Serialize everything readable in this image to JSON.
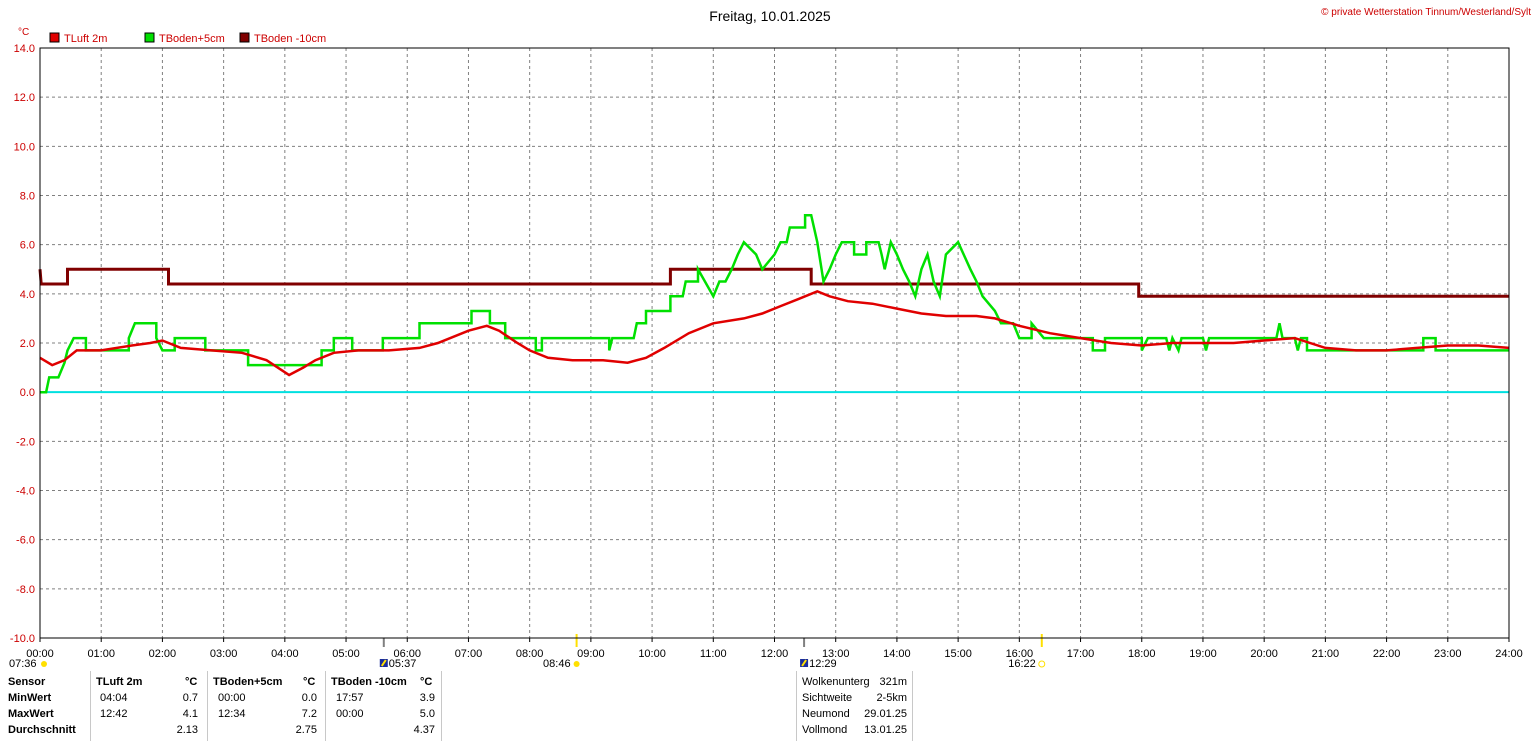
{
  "chart_data": {
    "type": "line",
    "title": "Freitag, 10.01.2025",
    "copyright": "© private Wetterstation Tinnum/Westerland/Sylt",
    "ylabel": "°C",
    "ylim": [
      -10,
      14
    ],
    "y_ticks": [
      "14.0",
      "12.0",
      "10.0",
      "8.0",
      "6.0",
      "4.0",
      "2.0",
      "0.0",
      "-2.0",
      "-4.0",
      "-6.0",
      "-8.0",
      "-10.0"
    ],
    "x_ticks": [
      "00:00",
      "01:00",
      "02:00",
      "03:00",
      "04:00",
      "05:00",
      "06:00",
      "07:00",
      "08:00",
      "09:00",
      "10:00",
      "11:00",
      "12:00",
      "13:00",
      "14:00",
      "15:00",
      "16:00",
      "17:00",
      "18:00",
      "19:00",
      "20:00",
      "21:00",
      "22:00",
      "23:00",
      "24:00"
    ],
    "xlim": [
      0,
      24
    ],
    "grid": true,
    "legend_position": "top-left",
    "zero_line_color": "#00e0e0",
    "series": [
      {
        "name": "TLuft 2m",
        "color": "#e00000",
        "width": 2.5,
        "points": [
          [
            0,
            1.4
          ],
          [
            0.2,
            1.1
          ],
          [
            0.4,
            1.3
          ],
          [
            0.6,
            1.7
          ],
          [
            1.0,
            1.7
          ],
          [
            1.5,
            1.9
          ],
          [
            1.8,
            2.0
          ],
          [
            2.0,
            2.1
          ],
          [
            2.3,
            1.8
          ],
          [
            2.8,
            1.7
          ],
          [
            3.3,
            1.6
          ],
          [
            3.7,
            1.3
          ],
          [
            4.07,
            0.7
          ],
          [
            4.3,
            1.0
          ],
          [
            4.5,
            1.3
          ],
          [
            4.8,
            1.6
          ],
          [
            5.2,
            1.7
          ],
          [
            5.7,
            1.7
          ],
          [
            6.2,
            1.8
          ],
          [
            6.5,
            2.0
          ],
          [
            7.0,
            2.5
          ],
          [
            7.3,
            2.7
          ],
          [
            7.5,
            2.5
          ],
          [
            7.8,
            2.0
          ],
          [
            8.0,
            1.7
          ],
          [
            8.3,
            1.4
          ],
          [
            8.7,
            1.3
          ],
          [
            9.2,
            1.3
          ],
          [
            9.6,
            1.2
          ],
          [
            9.9,
            1.4
          ],
          [
            10.2,
            1.8
          ],
          [
            10.6,
            2.4
          ],
          [
            11.0,
            2.8
          ],
          [
            11.5,
            3.0
          ],
          [
            11.8,
            3.2
          ],
          [
            12.1,
            3.5
          ],
          [
            12.4,
            3.8
          ],
          [
            12.7,
            4.1
          ],
          [
            12.9,
            3.9
          ],
          [
            13.2,
            3.7
          ],
          [
            13.6,
            3.6
          ],
          [
            14.0,
            3.4
          ],
          [
            14.4,
            3.2
          ],
          [
            14.8,
            3.1
          ],
          [
            15.3,
            3.1
          ],
          [
            15.6,
            3.0
          ],
          [
            16.0,
            2.7
          ],
          [
            16.5,
            2.4
          ],
          [
            17.0,
            2.2
          ],
          [
            17.5,
            2.0
          ],
          [
            18.0,
            1.9
          ],
          [
            18.5,
            2.0
          ],
          [
            19.0,
            2.0
          ],
          [
            19.5,
            2.0
          ],
          [
            20.0,
            2.1
          ],
          [
            20.5,
            2.2
          ],
          [
            21.0,
            1.8
          ],
          [
            21.5,
            1.7
          ],
          [
            22.0,
            1.7
          ],
          [
            22.5,
            1.8
          ],
          [
            23.0,
            1.9
          ],
          [
            23.5,
            1.9
          ],
          [
            24.0,
            1.8
          ]
        ]
      },
      {
        "name": "TBoden+5cm",
        "color": "#00e000",
        "width": 2.5,
        "points": [
          [
            0,
            0.0
          ],
          [
            0.1,
            0.0
          ],
          [
            0.15,
            0.6
          ],
          [
            0.3,
            0.6
          ],
          [
            0.4,
            1.2
          ],
          [
            0.45,
            1.7
          ],
          [
            0.55,
            2.2
          ],
          [
            0.75,
            2.2
          ],
          [
            0.75,
            1.7
          ],
          [
            1.45,
            1.7
          ],
          [
            1.45,
            2.2
          ],
          [
            1.55,
            2.8
          ],
          [
            1.9,
            2.8
          ],
          [
            1.9,
            2.2
          ],
          [
            2.0,
            1.7
          ],
          [
            2.2,
            1.7
          ],
          [
            2.2,
            2.2
          ],
          [
            2.7,
            2.2
          ],
          [
            2.7,
            1.7
          ],
          [
            3.4,
            1.7
          ],
          [
            3.4,
            1.1
          ],
          [
            4.6,
            1.1
          ],
          [
            4.6,
            1.7
          ],
          [
            4.8,
            1.7
          ],
          [
            4.8,
            2.2
          ],
          [
            5.1,
            2.2
          ],
          [
            5.1,
            1.7
          ],
          [
            5.6,
            1.7
          ],
          [
            5.6,
            2.2
          ],
          [
            6.2,
            2.2
          ],
          [
            6.2,
            2.8
          ],
          [
            7.05,
            2.8
          ],
          [
            7.05,
            3.3
          ],
          [
            7.35,
            3.3
          ],
          [
            7.35,
            2.8
          ],
          [
            7.6,
            2.8
          ],
          [
            7.6,
            2.2
          ],
          [
            8.1,
            2.2
          ],
          [
            8.1,
            1.7
          ],
          [
            8.2,
            1.7
          ],
          [
            8.2,
            2.2
          ],
          [
            9.3,
            2.2
          ],
          [
            9.3,
            1.7
          ],
          [
            9.35,
            2.2
          ],
          [
            9.7,
            2.2
          ],
          [
            9.75,
            2.8
          ],
          [
            9.9,
            2.8
          ],
          [
            9.9,
            3.3
          ],
          [
            10.3,
            3.3
          ],
          [
            10.3,
            3.9
          ],
          [
            10.5,
            3.9
          ],
          [
            10.55,
            4.5
          ],
          [
            10.75,
            4.5
          ],
          [
            10.75,
            5.0
          ],
          [
            11.0,
            3.9
          ],
          [
            11.1,
            4.5
          ],
          [
            11.2,
            4.5
          ],
          [
            11.3,
            5.0
          ],
          [
            11.4,
            5.6
          ],
          [
            11.5,
            6.1
          ],
          [
            11.7,
            5.6
          ],
          [
            11.8,
            5.0
          ],
          [
            12.0,
            5.6
          ],
          [
            12.1,
            6.1
          ],
          [
            12.2,
            6.1
          ],
          [
            12.25,
            6.7
          ],
          [
            12.5,
            6.7
          ],
          [
            12.5,
            7.2
          ],
          [
            12.6,
            7.2
          ],
          [
            12.7,
            6.1
          ],
          [
            12.8,
            4.5
          ],
          [
            12.9,
            5.0
          ],
          [
            13.0,
            5.6
          ],
          [
            13.1,
            6.1
          ],
          [
            13.3,
            6.1
          ],
          [
            13.3,
            5.6
          ],
          [
            13.5,
            5.6
          ],
          [
            13.5,
            6.1
          ],
          [
            13.7,
            6.1
          ],
          [
            13.75,
            5.6
          ],
          [
            13.8,
            5.0
          ],
          [
            13.9,
            6.1
          ],
          [
            14.0,
            5.6
          ],
          [
            14.1,
            5.0
          ],
          [
            14.2,
            4.5
          ],
          [
            14.3,
            3.9
          ],
          [
            14.4,
            5.0
          ],
          [
            14.5,
            5.6
          ],
          [
            14.6,
            4.5
          ],
          [
            14.7,
            3.9
          ],
          [
            14.8,
            5.6
          ],
          [
            15.0,
            6.1
          ],
          [
            15.2,
            5.0
          ],
          [
            15.3,
            4.5
          ],
          [
            15.4,
            3.9
          ],
          [
            15.6,
            3.3
          ],
          [
            15.7,
            2.8
          ],
          [
            15.9,
            2.8
          ],
          [
            16.0,
            2.2
          ],
          [
            16.2,
            2.2
          ],
          [
            16.2,
            2.8
          ],
          [
            16.4,
            2.2
          ],
          [
            17.2,
            2.2
          ],
          [
            17.2,
            1.7
          ],
          [
            17.4,
            1.7
          ],
          [
            17.4,
            2.2
          ],
          [
            18.0,
            2.2
          ],
          [
            18.0,
            1.7
          ],
          [
            18.1,
            2.2
          ],
          [
            18.4,
            2.2
          ],
          [
            18.45,
            1.7
          ],
          [
            18.5,
            2.2
          ],
          [
            18.6,
            1.7
          ],
          [
            18.65,
            2.2
          ],
          [
            19.0,
            2.2
          ],
          [
            19.05,
            1.7
          ],
          [
            19.1,
            2.2
          ],
          [
            20.2,
            2.2
          ],
          [
            20.25,
            2.8
          ],
          [
            20.3,
            2.2
          ],
          [
            20.5,
            2.2
          ],
          [
            20.55,
            1.7
          ],
          [
            20.6,
            2.2
          ],
          [
            20.7,
            2.2
          ],
          [
            20.7,
            1.7
          ],
          [
            22.6,
            1.7
          ],
          [
            22.6,
            2.2
          ],
          [
            22.8,
            2.2
          ],
          [
            22.8,
            1.7
          ],
          [
            24.0,
            1.7
          ]
        ]
      },
      {
        "name": "TBoden -10cm",
        "color": "#800000",
        "width": 3,
        "points": [
          [
            0,
            5.0
          ],
          [
            0.02,
            4.4
          ],
          [
            0.45,
            4.4
          ],
          [
            0.45,
            5.0
          ],
          [
            2.1,
            5.0
          ],
          [
            2.1,
            4.4
          ],
          [
            10.3,
            4.4
          ],
          [
            10.3,
            5.0
          ],
          [
            12.6,
            5.0
          ],
          [
            12.6,
            4.4
          ],
          [
            17.95,
            4.4
          ],
          [
            17.95,
            3.9
          ],
          [
            24.0,
            3.9
          ]
        ]
      }
    ],
    "sun_moon": {
      "sunrise": "08:46",
      "sunset": "16:22",
      "moonrise": "12:29",
      "moonset": "05:37",
      "start_label": "07:36"
    }
  },
  "table": {
    "header_sensor": "Sensor",
    "rows_labels": [
      "MinWert",
      "MaxWert",
      "Durchschnitt"
    ],
    "unit": "°C",
    "columns": [
      {
        "name": "TLuft 2m",
        "times": [
          "04:04",
          "12:42",
          ""
        ],
        "values": [
          "0.7",
          "4.1",
          "2.13"
        ]
      },
      {
        "name": "TBoden+5cm",
        "times": [
          "00:00",
          "12:34",
          ""
        ],
        "values": [
          "0.0",
          "7.2",
          "2.75"
        ]
      },
      {
        "name": "TBoden -10cm",
        "times": [
          "17:57",
          "00:00",
          ""
        ],
        "values": [
          "3.9",
          "5.0",
          "4.37"
        ]
      }
    ],
    "info": [
      {
        "label": "Wolkenunterg",
        "value": "321m"
      },
      {
        "label": "Sichtweite",
        "value": "2-5km"
      },
      {
        "label": "Neumond",
        "value": "29.01.25"
      },
      {
        "label": "Vollmond",
        "value": "13.01.25"
      }
    ]
  }
}
